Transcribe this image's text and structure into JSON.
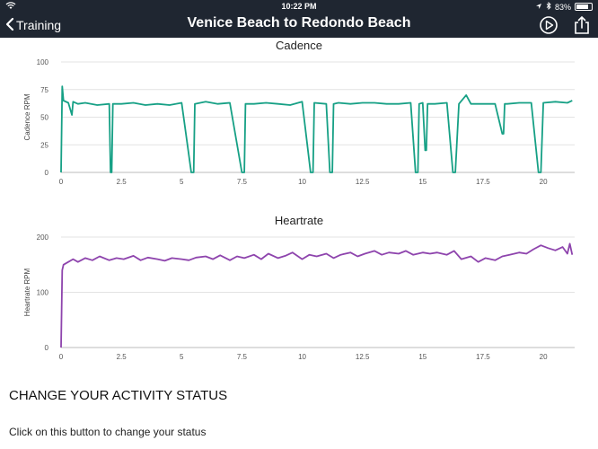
{
  "status_bar": {
    "time": "10:22 PM",
    "battery": "83%",
    "battery_level": 0.83
  },
  "nav": {
    "back_label": "Training",
    "title": "Venice Beach to Redondo Beach"
  },
  "icons": {
    "back": "chevron-left-icon",
    "play": "play-circle-icon",
    "share": "share-icon",
    "wifi": "wifi-icon",
    "bluetooth": "bluetooth-icon",
    "location": "location-arrow-icon",
    "battery": "battery-icon"
  },
  "section": {
    "heading": "CHANGE YOUR ACTIVITY STATUS",
    "text": "Click on this button to change your status"
  },
  "chart_data": [
    {
      "type": "line",
      "title": "Cadence",
      "ylabel": "Cadence RPM",
      "xlim": [
        0,
        21.3
      ],
      "ylim": [
        0,
        100
      ],
      "xticks": [
        "0",
        "2.5",
        "5",
        "7.5",
        "10",
        "12.5",
        "15",
        "17.5",
        "20"
      ],
      "yticks": [
        "0",
        "25",
        "50",
        "75",
        "100"
      ],
      "color": "#16a085",
      "series": [
        {
          "x": [
            0,
            0.05,
            0.1,
            0.3,
            0.45,
            0.5,
            0.7,
            1.0,
            1.5,
            2.0,
            2.05,
            2.1,
            2.15,
            2.5,
            3.0,
            3.5,
            4.0,
            4.5,
            5.0,
            5.4,
            5.45,
            5.5,
            5.55,
            6.0,
            6.5,
            7.0,
            7.5,
            7.55,
            7.6,
            7.65,
            8.0,
            8.5,
            9.0,
            9.5,
            10.0,
            10.35,
            10.4,
            10.45,
            10.5,
            11.0,
            11.15,
            11.2,
            11.25,
            11.3,
            11.5,
            12.0,
            12.5,
            13.0,
            13.5,
            14.0,
            14.5,
            14.7,
            14.75,
            14.8,
            14.85,
            15.0,
            15.1,
            15.15,
            15.2,
            15.5,
            16.0,
            16.25,
            16.3,
            16.35,
            16.5,
            16.8,
            17.0,
            17.5,
            18.0,
            18.3,
            18.35,
            18.4,
            18.5,
            19.0,
            19.5,
            19.8,
            19.85,
            19.9,
            20.0,
            20.5,
            21.0,
            21.2
          ],
          "y": [
            0,
            78,
            65,
            63,
            52,
            64,
            62,
            63,
            61,
            62,
            0,
            0,
            62,
            62,
            63,
            61,
            62,
            61,
            63,
            0,
            0,
            0,
            62,
            64,
            62,
            63,
            0,
            0,
            0,
            62,
            62,
            63,
            62,
            61,
            64,
            0,
            0,
            0,
            63,
            62,
            0,
            0,
            0,
            62,
            63,
            62,
            63,
            63,
            62,
            62,
            63,
            0,
            0,
            0,
            62,
            63,
            20,
            20,
            62,
            62,
            63,
            0,
            0,
            0,
            62,
            70,
            62,
            62,
            62,
            35,
            35,
            62,
            62,
            63,
            63,
            0,
            0,
            0,
            63,
            64,
            63,
            65
          ]
        }
      ]
    },
    {
      "type": "line",
      "title": "Heartrate",
      "ylabel": "Heartrate RPM",
      "xlim": [
        0,
        21.3
      ],
      "ylim": [
        0,
        200
      ],
      "xticks": [
        "0",
        "2.5",
        "5",
        "7.5",
        "10",
        "12.5",
        "15",
        "17.5",
        "20"
      ],
      "yticks": [
        "0",
        "100",
        "200"
      ],
      "color": "#8e44ad",
      "series": [
        {
          "x": [
            0,
            0.05,
            0.1,
            0.3,
            0.5,
            0.7,
            1.0,
            1.3,
            1.6,
            2.0,
            2.3,
            2.6,
            3.0,
            3.3,
            3.6,
            4.0,
            4.3,
            4.6,
            5.0,
            5.3,
            5.6,
            6.0,
            6.3,
            6.6,
            7.0,
            7.3,
            7.6,
            8.0,
            8.3,
            8.6,
            9.0,
            9.3,
            9.6,
            10.0,
            10.3,
            10.6,
            11.0,
            11.3,
            11.6,
            12.0,
            12.3,
            12.6,
            13.0,
            13.3,
            13.6,
            14.0,
            14.3,
            14.6,
            15.0,
            15.3,
            15.6,
            16.0,
            16.3,
            16.6,
            17.0,
            17.3,
            17.6,
            18.0,
            18.3,
            18.6,
            19.0,
            19.3,
            19.6,
            19.9,
            20.2,
            20.5,
            20.8,
            21.0,
            21.1,
            21.2
          ],
          "y": [
            0,
            140,
            150,
            155,
            160,
            155,
            162,
            158,
            165,
            158,
            162,
            160,
            166,
            158,
            163,
            160,
            157,
            162,
            160,
            158,
            163,
            165,
            160,
            167,
            158,
            165,
            162,
            168,
            160,
            170,
            162,
            166,
            172,
            160,
            168,
            165,
            170,
            162,
            168,
            172,
            165,
            170,
            175,
            168,
            172,
            170,
            175,
            168,
            172,
            170,
            172,
            168,
            175,
            160,
            165,
            155,
            162,
            158,
            165,
            168,
            172,
            170,
            178,
            185,
            180,
            176,
            182,
            170,
            188,
            168
          ]
        }
      ]
    }
  ]
}
